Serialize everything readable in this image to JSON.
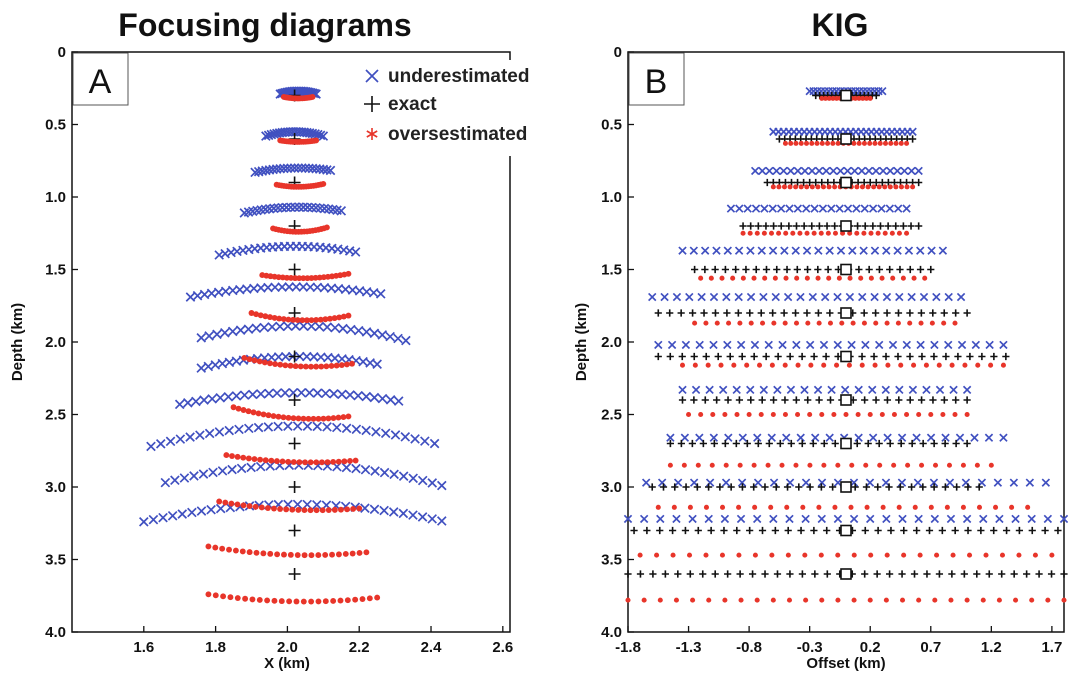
{
  "chart_data": [
    {
      "type": "scatter",
      "panel_label": "A",
      "title": "Focusing diagrams",
      "xlabel": "X (km)",
      "ylabel": "Depth (km)",
      "xlim": [
        1.4,
        2.62
      ],
      "ylim": [
        4.0,
        0.0
      ],
      "x_ticks": [
        "1.6",
        "1.8",
        "2.0",
        "2.2",
        "2.4",
        "2.6"
      ],
      "y_ticks": [
        "0",
        "0.5",
        "1.0",
        "1.5",
        "2.0",
        "2.5",
        "3.0",
        "3.5",
        "4.0"
      ],
      "legend": {
        "placement": "top-right",
        "entries": [
          "underestimated",
          "exact",
          "oversestimated"
        ]
      },
      "colors": {
        "underestimated": "#4050c0",
        "exact": "#111111",
        "oversestimated": "#e8352a"
      },
      "depths": [
        0.3,
        0.6,
        0.9,
        1.2,
        1.5,
        1.8,
        2.1,
        2.4,
        2.7,
        3.0,
        3.3,
        3.6
      ],
      "series": [
        {
          "name": "underestimated",
          "marker": "x",
          "curves": [
            {
              "center": 2.03,
              "left": 1.98,
              "right": 2.08,
              "y": 0.27,
              "sag": 0.02,
              "n": 22
            },
            {
              "center": 2.02,
              "left": 1.94,
              "right": 2.1,
              "y": 0.55,
              "sag": 0.03,
              "n": 22
            },
            {
              "center": 2.03,
              "left": 1.91,
              "right": 2.12,
              "y": 0.8,
              "sag": 0.03,
              "n": 22
            },
            {
              "center": 2.03,
              "left": 1.88,
              "right": 2.15,
              "y": 1.07,
              "sag": 0.04,
              "n": 24
            },
            {
              "center": 2.02,
              "left": 1.81,
              "right": 2.19,
              "y": 1.34,
              "sag": 0.06,
              "n": 24
            },
            {
              "center": 2.02,
              "left": 1.73,
              "right": 2.26,
              "y": 1.62,
              "sag": 0.07,
              "n": 28
            },
            {
              "center": 2.03,
              "left": 1.76,
              "right": 2.33,
              "y": 1.89,
              "sag": 0.1,
              "n": 27
            },
            {
              "center": 2.03,
              "left": 1.76,
              "right": 2.25,
              "y": 2.1,
              "sag": 0.08,
              "n": 26
            },
            {
              "center": 2.03,
              "left": 1.7,
              "right": 2.31,
              "y": 2.35,
              "sag": 0.08,
              "n": 28
            },
            {
              "center": 2.03,
              "left": 1.62,
              "right": 2.41,
              "y": 2.58,
              "sag": 0.14,
              "n": 30
            },
            {
              "center": 2.03,
              "left": 1.66,
              "right": 2.43,
              "y": 2.85,
              "sag": 0.14,
              "n": 30
            },
            {
              "center": 2.02,
              "left": 1.6,
              "right": 2.43,
              "y": 3.12,
              "sag": 0.12,
              "n": 32
            }
          ]
        },
        {
          "name": "exact",
          "marker": "+",
          "points": [
            [
              2.02,
              0.3
            ],
            [
              2.02,
              0.6
            ],
            [
              2.02,
              0.9
            ],
            [
              2.02,
              1.2
            ],
            [
              2.02,
              1.5
            ],
            [
              2.02,
              1.8
            ],
            [
              2.02,
              2.1
            ],
            [
              2.02,
              2.4
            ],
            [
              2.02,
              2.7
            ],
            [
              2.02,
              3.0
            ],
            [
              2.02,
              3.3
            ],
            [
              2.02,
              3.6
            ]
          ]
        },
        {
          "name": "oversestimated",
          "marker": "*",
          "curves": [
            {
              "center": 2.03,
              "left": 1.99,
              "right": 2.07,
              "y": 0.32,
              "sag": -0.01,
              "n": 18
            },
            {
              "center": 2.03,
              "left": 1.98,
              "right": 2.08,
              "y": 0.62,
              "sag": -0.01,
              "n": 18
            },
            {
              "center": 2.03,
              "left": 1.97,
              "right": 2.1,
              "y": 0.93,
              "sag": -0.02,
              "n": 20
            },
            {
              "center": 2.03,
              "left": 1.96,
              "right": 2.11,
              "y": 1.24,
              "sag": -0.03,
              "n": 20
            },
            {
              "center": 2.04,
              "left": 1.93,
              "right": 2.17,
              "y": 1.56,
              "sag": -0.03,
              "n": 22
            },
            {
              "center": 2.05,
              "left": 1.9,
              "right": 2.17,
              "y": 1.85,
              "sag": -0.05,
              "n": 22
            },
            {
              "center": 2.07,
              "left": 1.88,
              "right": 2.18,
              "y": 2.17,
              "sag": -0.06,
              "n": 22
            },
            {
              "center": 2.07,
              "left": 1.85,
              "right": 2.17,
              "y": 2.53,
              "sag": -0.08,
              "n": 24
            },
            {
              "center": 2.07,
              "left": 1.83,
              "right": 2.19,
              "y": 2.83,
              "sag": -0.05,
              "n": 24
            },
            {
              "center": 2.08,
              "left": 1.81,
              "right": 2.2,
              "y": 3.16,
              "sag": -0.06,
              "n": 24
            },
            {
              "center": 2.06,
              "left": 1.78,
              "right": 2.22,
              "y": 3.47,
              "sag": -0.06,
              "n": 24
            },
            {
              "center": 2.05,
              "left": 1.78,
              "right": 2.25,
              "y": 3.79,
              "sag": -0.05,
              "n": 24
            }
          ]
        }
      ]
    },
    {
      "type": "scatter",
      "panel_label": "B",
      "title": "KIG",
      "xlabel": "Offset (km)",
      "ylabel": "Depth (km)",
      "xlim": [
        -1.8,
        1.8
      ],
      "ylim": [
        4.0,
        0.0
      ],
      "x_ticks": [
        "-1.8",
        "-1.3",
        "-0.8",
        "-0.3",
        "0.2",
        "0.7",
        "1.2",
        "1.7"
      ],
      "y_ticks": [
        "0",
        "0.5",
        "1.0",
        "1.5",
        "2.0",
        "2.5",
        "3.0",
        "3.5",
        "4.0"
      ],
      "colors": {
        "underestimated": "#4050c0",
        "exact": "#111111",
        "oversestimated": "#e8352a",
        "square": "#111111"
      },
      "exact_squares": [
        [
          0.0,
          0.3
        ],
        [
          0.0,
          0.6
        ],
        [
          0.0,
          0.9
        ],
        [
          0.0,
          1.2
        ],
        [
          0.0,
          1.5
        ],
        [
          0.0,
          1.8
        ],
        [
          0.0,
          2.1
        ],
        [
          0.0,
          2.4
        ],
        [
          0.0,
          2.7
        ],
        [
          0.0,
          3.0
        ],
        [
          0.0,
          3.3
        ],
        [
          0.0,
          3.6
        ]
      ],
      "series": [
        {
          "name": "underestimated",
          "marker": "x",
          "rows": [
            {
              "y": 0.27,
              "left": -0.3,
              "right": 0.3,
              "n": 20
            },
            {
              "y": 0.55,
              "left": -0.6,
              "right": 0.55,
              "n": 28
            },
            {
              "y": 0.82,
              "left": -0.75,
              "right": 0.6,
              "n": 24
            },
            {
              "y": 1.08,
              "left": -0.95,
              "right": 0.5,
              "n": 22
            },
            {
              "y": 1.37,
              "left": -1.35,
              "right": 0.8,
              "n": 24
            },
            {
              "y": 1.69,
              "left": -1.6,
              "right": 0.95,
              "n": 26
            },
            {
              "y": 2.02,
              "left": -1.55,
              "right": 1.3,
              "n": 26
            },
            {
              "y": 2.33,
              "left": -1.35,
              "right": 1.0,
              "n": 22
            },
            {
              "y": 2.66,
              "left": -1.45,
              "right": 1.3,
              "n": 24
            },
            {
              "y": 2.97,
              "left": -1.65,
              "right": 1.65,
              "n": 26
            },
            {
              "y": 3.22,
              "left": -1.8,
              "right": 1.8,
              "n": 28
            }
          ]
        },
        {
          "name": "exact",
          "marker": "+",
          "rows": [
            {
              "y": 0.3,
              "left": -0.25,
              "right": 0.25,
              "n": 16
            },
            {
              "y": 0.6,
              "left": -0.55,
              "right": 0.55,
              "n": 26
            },
            {
              "y": 0.9,
              "left": -0.65,
              "right": 0.6,
              "n": 26
            },
            {
              "y": 1.2,
              "left": -0.85,
              "right": 0.6,
              "n": 24
            },
            {
              "y": 1.5,
              "left": -1.25,
              "right": 0.7,
              "n": 24
            },
            {
              "y": 1.8,
              "left": -1.55,
              "right": 1.0,
              "n": 28
            },
            {
              "y": 2.1,
              "left": -1.55,
              "right": 1.32,
              "n": 30
            },
            {
              "y": 2.4,
              "left": -1.35,
              "right": 1.0,
              "n": 26
            },
            {
              "y": 2.7,
              "left": -1.45,
              "right": 1.0,
              "n": 28
            },
            {
              "y": 3.0,
              "left": -1.6,
              "right": 1.1,
              "n": 30
            },
            {
              "y": 3.3,
              "left": -1.75,
              "right": 1.75,
              "n": 34
            },
            {
              "y": 3.6,
              "left": -1.8,
              "right": 1.8,
              "n": 36
            }
          ]
        },
        {
          "name": "oversestimated",
          "marker": "*",
          "rows": [
            {
              "y": 0.32,
              "left": -0.2,
              "right": 0.2,
              "n": 14
            },
            {
              "y": 0.63,
              "left": -0.5,
              "right": 0.5,
              "n": 24
            },
            {
              "y": 0.93,
              "left": -0.6,
              "right": 0.55,
              "n": 26
            },
            {
              "y": 1.25,
              "left": -0.85,
              "right": 0.5,
              "n": 24
            },
            {
              "y": 1.56,
              "left": -1.2,
              "right": 0.65,
              "n": 22
            },
            {
              "y": 1.87,
              "left": -1.25,
              "right": 0.9,
              "n": 24
            },
            {
              "y": 2.16,
              "left": -1.35,
              "right": 1.3,
              "n": 26
            },
            {
              "y": 2.5,
              "left": -1.3,
              "right": 1.0,
              "n": 24
            },
            {
              "y": 2.85,
              "left": -1.45,
              "right": 1.2,
              "n": 24
            },
            {
              "y": 3.14,
              "left": -1.55,
              "right": 1.5,
              "n": 24
            },
            {
              "y": 3.47,
              "left": -1.7,
              "right": 1.7,
              "n": 26
            },
            {
              "y": 3.78,
              "left": -1.8,
              "right": 1.8,
              "n": 28
            }
          ]
        }
      ]
    }
  ]
}
